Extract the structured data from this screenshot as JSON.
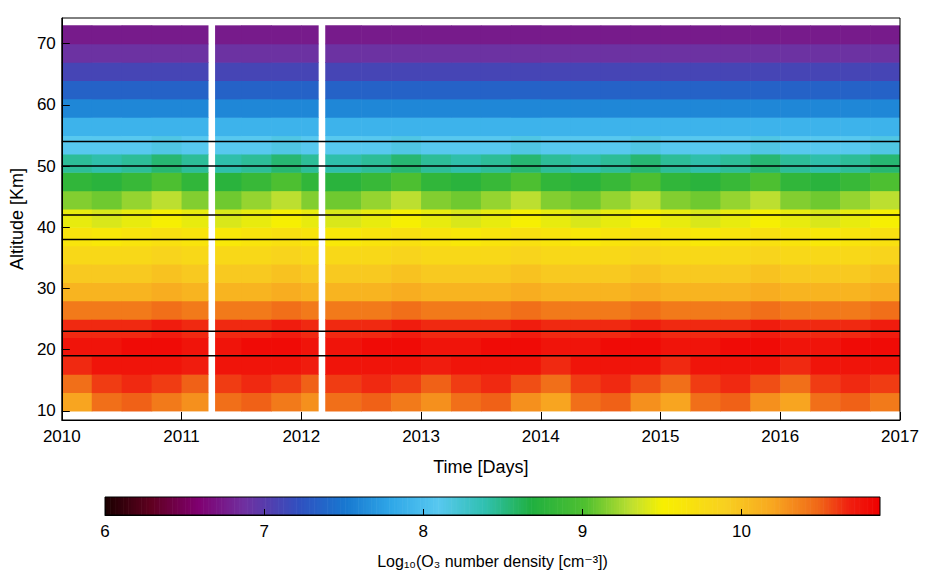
{
  "chart_data": {
    "type": "heatmap",
    "x_label": "Time [Days]",
    "y_label": "Altitude [Km]",
    "xlim": [
      2010,
      2017
    ],
    "xticks": [
      2010,
      2011,
      2012,
      2013,
      2014,
      2015,
      2016,
      2017
    ],
    "ylim": [
      8.5,
      74.2
    ],
    "yticks": [
      10,
      20,
      30,
      40,
      50,
      60,
      70
    ],
    "time_bins": [
      2010,
      2010.25,
      2010.5,
      2010.75,
      2011,
      2011.22,
      2011.28,
      2011.5,
      2011.75,
      2012,
      2012.14,
      2012.2,
      2012.5,
      2012.75,
      2013,
      2013.25,
      2013.5,
      2013.75,
      2014,
      2014.25,
      2014.5,
      2014.75,
      2015,
      2015.25,
      2015.5,
      2015.75,
      2016,
      2016.25,
      2016.5,
      2016.75,
      2017
    ],
    "altitude_bins": [
      10,
      13,
      16,
      19,
      22,
      25,
      28,
      31,
      34,
      37,
      40,
      43,
      46,
      49,
      52,
      55,
      58,
      61,
      64,
      67,
      70,
      73
    ],
    "cells": [
      [
        10.2,
        10.45,
        10.65,
        10.75,
        10.65,
        10.4,
        10.1,
        9.95,
        9.8,
        9.65,
        9.45,
        9.15,
        8.8,
        8.45,
        8.1,
        7.9,
        7.6,
        7.35,
        7.1,
        6.9,
        6.75
      ],
      [
        10.45,
        10.6,
        10.75,
        10.75,
        10.65,
        10.4,
        10.1,
        9.95,
        9.8,
        9.6,
        9.4,
        9.1,
        8.75,
        8.4,
        8.1,
        7.9,
        7.6,
        7.35,
        7.1,
        6.9,
        6.75
      ],
      [
        10.5,
        10.65,
        10.75,
        10.8,
        10.65,
        10.4,
        10.1,
        9.95,
        9.8,
        9.65,
        9.45,
        9.2,
        8.85,
        8.45,
        8.1,
        7.9,
        7.6,
        7.35,
        7.1,
        6.9,
        6.75
      ],
      [
        10.4,
        10.6,
        10.75,
        10.8,
        10.7,
        10.45,
        10.15,
        10.0,
        9.85,
        9.7,
        9.5,
        9.3,
        9.0,
        8.55,
        8.15,
        7.9,
        7.6,
        7.35,
        7.1,
        6.9,
        6.75
      ],
      [
        10.3,
        10.5,
        10.7,
        10.75,
        10.65,
        10.4,
        10.1,
        9.95,
        9.8,
        9.65,
        9.45,
        9.15,
        8.8,
        8.45,
        8.1,
        7.9,
        7.6,
        7.35,
        7.1,
        6.9,
        6.75
      ],
      null,
      [
        10.45,
        10.6,
        10.75,
        10.75,
        10.65,
        10.4,
        10.1,
        9.95,
        9.8,
        9.6,
        9.4,
        9.1,
        8.75,
        8.4,
        8.1,
        7.9,
        7.6,
        7.35,
        7.1,
        6.9,
        6.75
      ],
      [
        10.5,
        10.65,
        10.75,
        10.8,
        10.65,
        10.4,
        10.1,
        9.95,
        9.8,
        9.65,
        9.45,
        9.2,
        8.85,
        8.45,
        8.1,
        7.9,
        7.6,
        7.35,
        7.1,
        6.9,
        6.75
      ],
      [
        10.4,
        10.6,
        10.75,
        10.8,
        10.7,
        10.45,
        10.15,
        10.0,
        9.85,
        9.7,
        9.5,
        9.3,
        9.0,
        8.55,
        8.15,
        7.9,
        7.6,
        7.35,
        7.1,
        6.9,
        6.75
      ],
      [
        10.3,
        10.5,
        10.7,
        10.75,
        10.65,
        10.4,
        10.1,
        9.95,
        9.8,
        9.65,
        9.45,
        9.15,
        8.8,
        8.45,
        8.1,
        7.9,
        7.6,
        7.35,
        7.1,
        6.9,
        6.75
      ],
      null,
      [
        10.45,
        10.6,
        10.75,
        10.75,
        10.65,
        10.4,
        10.1,
        9.95,
        9.8,
        9.6,
        9.4,
        9.1,
        8.75,
        8.4,
        8.1,
        7.9,
        7.6,
        7.35,
        7.1,
        6.9,
        6.75
      ],
      [
        10.5,
        10.65,
        10.75,
        10.8,
        10.65,
        10.4,
        10.1,
        9.95,
        9.8,
        9.65,
        9.45,
        9.2,
        8.85,
        8.45,
        8.1,
        7.9,
        7.6,
        7.35,
        7.1,
        6.9,
        6.75
      ],
      [
        10.4,
        10.6,
        10.75,
        10.8,
        10.7,
        10.45,
        10.15,
        10.0,
        9.85,
        9.7,
        9.5,
        9.3,
        9.0,
        8.55,
        8.15,
        7.9,
        7.6,
        7.35,
        7.1,
        6.9,
        6.75
      ],
      [
        10.3,
        10.5,
        10.7,
        10.75,
        10.65,
        10.4,
        10.1,
        9.95,
        9.8,
        9.65,
        9.45,
        9.15,
        8.8,
        8.45,
        8.1,
        7.9,
        7.6,
        7.35,
        7.1,
        6.9,
        6.75
      ],
      [
        10.45,
        10.6,
        10.75,
        10.75,
        10.65,
        10.4,
        10.1,
        9.95,
        9.8,
        9.6,
        9.4,
        9.1,
        8.75,
        8.4,
        8.1,
        7.9,
        7.6,
        7.35,
        7.1,
        6.9,
        6.75
      ],
      [
        10.5,
        10.65,
        10.75,
        10.8,
        10.65,
        10.4,
        10.1,
        9.95,
        9.8,
        9.65,
        9.45,
        9.2,
        8.85,
        8.45,
        8.1,
        7.9,
        7.6,
        7.35,
        7.1,
        6.9,
        6.75
      ],
      [
        10.3,
        10.55,
        10.75,
        10.8,
        10.7,
        10.45,
        10.15,
        10.0,
        9.85,
        9.7,
        9.5,
        9.3,
        9.0,
        8.55,
        8.15,
        7.9,
        7.6,
        7.35,
        7.1,
        6.9,
        6.75
      ],
      [
        10.2,
        10.45,
        10.65,
        10.75,
        10.65,
        10.4,
        10.1,
        9.95,
        9.8,
        9.65,
        9.45,
        9.15,
        8.8,
        8.45,
        8.1,
        7.9,
        7.6,
        7.35,
        7.1,
        6.9,
        6.75
      ],
      [
        10.45,
        10.6,
        10.75,
        10.75,
        10.65,
        10.4,
        10.1,
        9.95,
        9.8,
        9.6,
        9.4,
        9.1,
        8.75,
        8.4,
        8.1,
        7.9,
        7.6,
        7.35,
        7.1,
        6.9,
        6.75
      ],
      [
        10.5,
        10.65,
        10.75,
        10.8,
        10.65,
        10.4,
        10.1,
        9.95,
        9.8,
        9.65,
        9.45,
        9.2,
        8.85,
        8.45,
        8.1,
        7.9,
        7.6,
        7.35,
        7.1,
        6.9,
        6.75
      ],
      [
        10.3,
        10.55,
        10.75,
        10.8,
        10.7,
        10.45,
        10.15,
        10.0,
        9.85,
        9.7,
        9.5,
        9.3,
        9.0,
        8.55,
        8.15,
        7.9,
        7.6,
        7.35,
        7.1,
        6.9,
        6.75
      ],
      [
        10.2,
        10.45,
        10.65,
        10.75,
        10.65,
        10.4,
        10.1,
        9.95,
        9.8,
        9.65,
        9.45,
        9.15,
        8.8,
        8.45,
        8.1,
        7.9,
        7.6,
        7.35,
        7.1,
        6.9,
        6.75
      ],
      [
        10.45,
        10.6,
        10.75,
        10.75,
        10.65,
        10.4,
        10.1,
        9.95,
        9.8,
        9.6,
        9.4,
        9.1,
        8.75,
        8.4,
        8.1,
        7.9,
        7.6,
        7.35,
        7.1,
        6.9,
        6.75
      ],
      [
        10.5,
        10.65,
        10.75,
        10.8,
        10.65,
        10.4,
        10.1,
        9.95,
        9.8,
        9.65,
        9.45,
        9.2,
        8.85,
        8.45,
        8.1,
        7.9,
        7.6,
        7.35,
        7.1,
        6.9,
        6.75
      ],
      [
        10.3,
        10.55,
        10.75,
        10.8,
        10.7,
        10.45,
        10.15,
        10.0,
        9.85,
        9.7,
        9.5,
        9.3,
        9.0,
        8.55,
        8.15,
        7.9,
        7.6,
        7.35,
        7.1,
        6.9,
        6.75
      ],
      [
        10.2,
        10.45,
        10.65,
        10.75,
        10.65,
        10.4,
        10.1,
        9.95,
        9.8,
        9.65,
        9.45,
        9.15,
        8.8,
        8.45,
        8.1,
        7.9,
        7.6,
        7.35,
        7.1,
        6.9,
        6.75
      ],
      [
        10.45,
        10.6,
        10.75,
        10.75,
        10.65,
        10.4,
        10.1,
        9.95,
        9.8,
        9.6,
        9.4,
        9.1,
        8.75,
        8.4,
        8.1,
        7.9,
        7.6,
        7.35,
        7.1,
        6.9,
        6.75
      ],
      [
        10.5,
        10.65,
        10.75,
        10.8,
        10.65,
        10.4,
        10.1,
        9.95,
        9.8,
        9.65,
        9.45,
        9.2,
        8.85,
        8.45,
        8.1,
        7.9,
        7.6,
        7.35,
        7.1,
        6.9,
        6.75
      ],
      [
        10.4,
        10.6,
        10.75,
        10.8,
        10.7,
        10.45,
        10.15,
        10.0,
        9.85,
        9.7,
        9.5,
        9.3,
        9.0,
        8.55,
        8.15,
        7.9,
        7.6,
        7.35,
        7.1,
        6.9,
        6.75
      ]
    ],
    "hlines": [
      19,
      23,
      38,
      42,
      50,
      54
    ],
    "colorbar_label": "Log₁₀(O₃ number density [cm⁻³])",
    "colorbar_range": [
      6,
      10.87
    ],
    "colorbar_ticks": [
      6,
      7,
      8,
      9,
      10
    ]
  }
}
